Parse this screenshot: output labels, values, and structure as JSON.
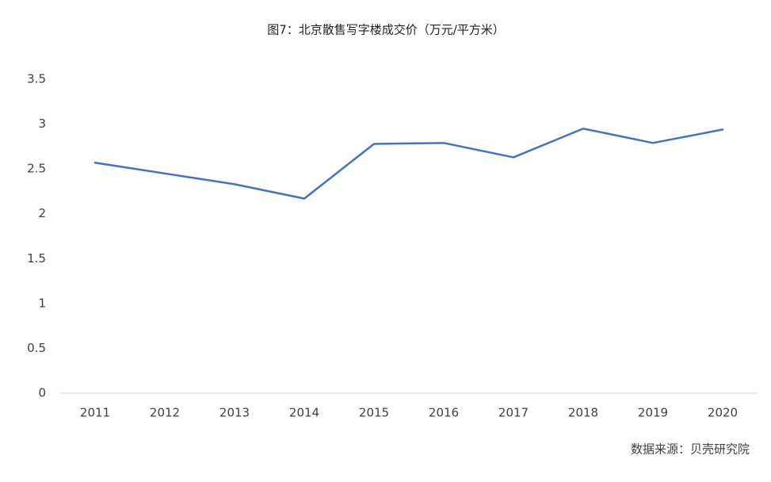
{
  "chart_data": {
    "type": "line",
    "title": "图7：北京散售写字楼成交价（万元/平方米）",
    "source": "数据来源：贝壳研究院",
    "categories": [
      "2011",
      "2012",
      "2013",
      "2014",
      "2015",
      "2016",
      "2017",
      "2018",
      "2019",
      "2020"
    ],
    "values": [
      2.57,
      2.45,
      2.33,
      2.17,
      2.78,
      2.79,
      2.63,
      2.95,
      2.79,
      2.94
    ],
    "color": "#4472c4",
    "ylim": [
      0,
      3.5
    ],
    "yticks": [
      0,
      0.5,
      1,
      1.5,
      2,
      2.5,
      3,
      3.5
    ],
    "grid": false
  }
}
